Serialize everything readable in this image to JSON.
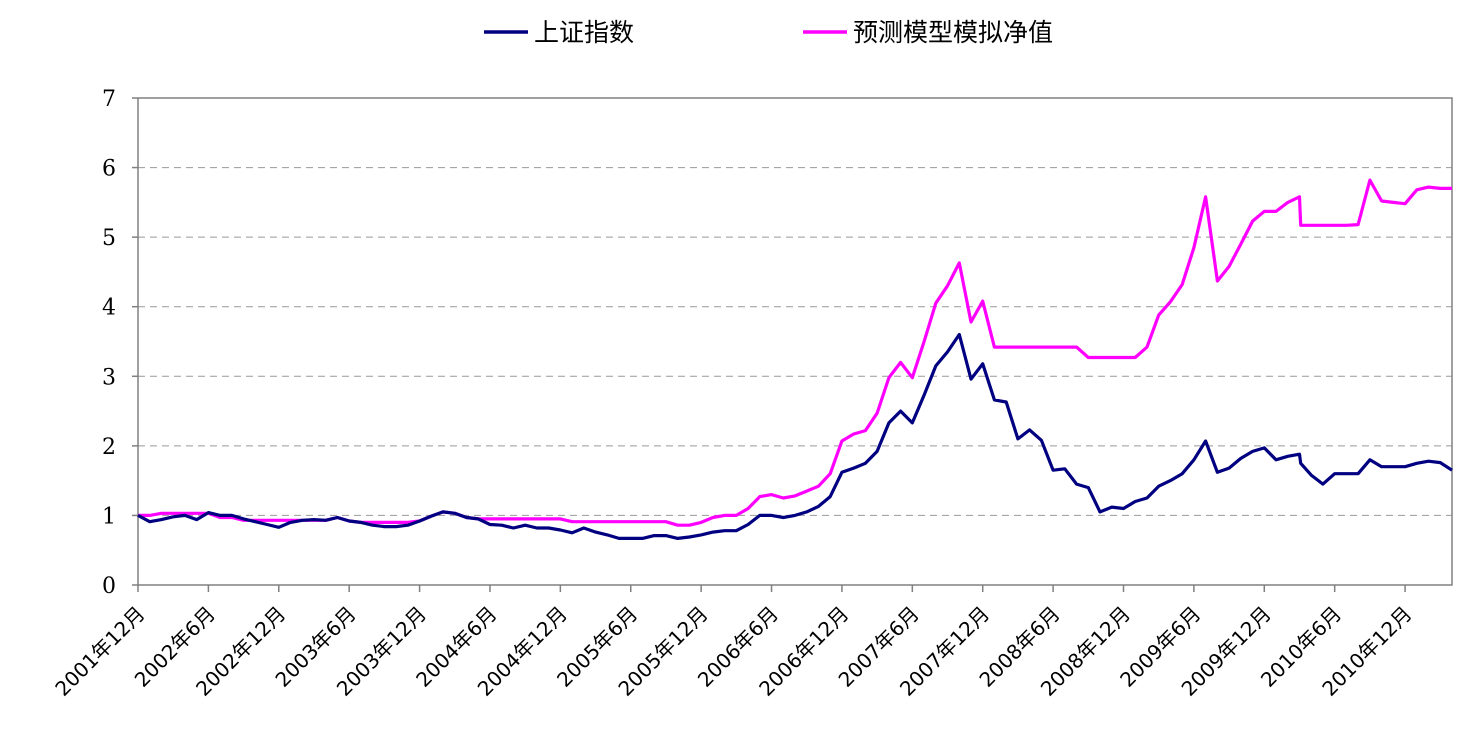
{
  "chart_data": {
    "type": "line",
    "title": "",
    "xlabel": "",
    "ylabel": "",
    "ylim": [
      0,
      7
    ],
    "yticks": [
      "0",
      "1",
      "2",
      "3",
      "4",
      "5",
      "6",
      "7"
    ],
    "grid": "horizontal dashed",
    "legend_position": "top",
    "x_tick_labels": [
      "2001年12月",
      "2002年6月",
      "2002年12月",
      "2003年6月",
      "2003年12月",
      "2004年6月",
      "2004年12月",
      "2005年6月",
      "2005年12月",
      "2006年6月",
      "2006年12月",
      "2007年6月",
      "2007年12月",
      "2008年6月",
      "2008年12月",
      "2009年6月",
      "2009年12月",
      "2010年6月",
      "2010年12月"
    ],
    "x_tick_months": [
      0,
      6,
      12,
      18,
      24,
      30,
      36,
      42,
      48,
      54,
      60,
      66,
      72,
      78,
      84,
      90,
      96,
      102,
      108
    ],
    "x_month_range": [
      0,
      112
    ],
    "series": [
      {
        "name": "上证指数",
        "color": "#000080",
        "points": [
          [
            0,
            1.0
          ],
          [
            1,
            0.91
          ],
          [
            2,
            0.94
          ],
          [
            3,
            0.98
          ],
          [
            4,
            1.0
          ],
          [
            5,
            0.94
          ],
          [
            6,
            1.04
          ],
          [
            7,
            1.0
          ],
          [
            8,
            1.0
          ],
          [
            9,
            0.95
          ],
          [
            10,
            0.91
          ],
          [
            11,
            0.87
          ],
          [
            12,
            0.83
          ],
          [
            13,
            0.9
          ],
          [
            14,
            0.93
          ],
          [
            15,
            0.94
          ],
          [
            16,
            0.93
          ],
          [
            17,
            0.97
          ],
          [
            18,
            0.92
          ],
          [
            19,
            0.9
          ],
          [
            20,
            0.86
          ],
          [
            21,
            0.84
          ],
          [
            22,
            0.84
          ],
          [
            23,
            0.86
          ],
          [
            24,
            0.92
          ],
          [
            25,
            0.99
          ],
          [
            26,
            1.05
          ],
          [
            27,
            1.03
          ],
          [
            28,
            0.97
          ],
          [
            29,
            0.95
          ],
          [
            30,
            0.87
          ],
          [
            31,
            0.86
          ],
          [
            32,
            0.82
          ],
          [
            33,
            0.86
          ],
          [
            34,
            0.82
          ],
          [
            35,
            0.82
          ],
          [
            36,
            0.79
          ],
          [
            37,
            0.75
          ],
          [
            38,
            0.82
          ],
          [
            39,
            0.76
          ],
          [
            40,
            0.72
          ],
          [
            41,
            0.67
          ],
          [
            42,
            0.67
          ],
          [
            43,
            0.67
          ],
          [
            44,
            0.71
          ],
          [
            45,
            0.71
          ],
          [
            46,
            0.67
          ],
          [
            47,
            0.69
          ],
          [
            48,
            0.72
          ],
          [
            49,
            0.76
          ],
          [
            50,
            0.78
          ],
          [
            51,
            0.78
          ],
          [
            52,
            0.87
          ],
          [
            53,
            1.0
          ],
          [
            54,
            1.0
          ],
          [
            55,
            0.97
          ],
          [
            56,
            1.0
          ],
          [
            57,
            1.05
          ],
          [
            58,
            1.13
          ],
          [
            59,
            1.27
          ],
          [
            60,
            1.62
          ],
          [
            61,
            1.68
          ],
          [
            62,
            1.75
          ],
          [
            63,
            1.92
          ],
          [
            64,
            2.33
          ],
          [
            65,
            2.5
          ],
          [
            66,
            2.33
          ],
          [
            67,
            2.73
          ],
          [
            68,
            3.15
          ],
          [
            69,
            3.35
          ],
          [
            70,
            3.6
          ],
          [
            71,
            2.96
          ],
          [
            72,
            3.18
          ],
          [
            73,
            2.66
          ],
          [
            74,
            2.63
          ],
          [
            75,
            2.1
          ],
          [
            76,
            2.23
          ],
          [
            77,
            2.08
          ],
          [
            78,
            1.65
          ],
          [
            79,
            1.67
          ],
          [
            80,
            1.45
          ],
          [
            81,
            1.4
          ],
          [
            82,
            1.05
          ],
          [
            83,
            1.12
          ],
          [
            84,
            1.1
          ],
          [
            85,
            1.2
          ],
          [
            86,
            1.25
          ],
          [
            87,
            1.42
          ],
          [
            88,
            1.5
          ],
          [
            89,
            1.6
          ],
          [
            90,
            1.8
          ],
          [
            91,
            2.07
          ],
          [
            92,
            1.62
          ],
          [
            93,
            1.68
          ],
          [
            94,
            1.82
          ],
          [
            95,
            1.92
          ],
          [
            96,
            1.97
          ],
          [
            97,
            1.8
          ],
          [
            98,
            1.85
          ],
          [
            99,
            1.88
          ],
          [
            99.1,
            1.75
          ],
          [
            100,
            1.58
          ],
          [
            101,
            1.45
          ],
          [
            102,
            1.6
          ],
          [
            103,
            1.6
          ],
          [
            104,
            1.6
          ],
          [
            105,
            1.8
          ],
          [
            106,
            1.7
          ],
          [
            107,
            1.7
          ],
          [
            108,
            1.7
          ],
          [
            109,
            1.75
          ],
          [
            110,
            1.78
          ],
          [
            111,
            1.76
          ],
          [
            112,
            1.65
          ]
        ]
      },
      {
        "name": "预测模型模拟净值",
        "color": "#ff00ff",
        "points": [
          [
            0,
            1.0
          ],
          [
            1,
            1.0
          ],
          [
            2,
            1.03
          ],
          [
            3,
            1.03
          ],
          [
            4,
            1.03
          ],
          [
            5,
            1.03
          ],
          [
            6,
            1.03
          ],
          [
            7,
            0.97
          ],
          [
            8,
            0.97
          ],
          [
            9,
            0.93
          ],
          [
            10,
            0.93
          ],
          [
            11,
            0.93
          ],
          [
            12,
            0.93
          ],
          [
            13,
            0.93
          ],
          [
            14,
            0.93
          ],
          [
            15,
            0.93
          ],
          [
            16,
            0.93
          ],
          [
            17,
            0.97
          ],
          [
            18,
            0.92
          ],
          [
            19,
            0.9
          ],
          [
            20,
            0.9
          ],
          [
            21,
            0.9
          ],
          [
            22,
            0.9
          ],
          [
            23,
            0.9
          ],
          [
            24,
            0.92
          ],
          [
            25,
            0.99
          ],
          [
            26,
            1.05
          ],
          [
            27,
            1.03
          ],
          [
            28,
            0.97
          ],
          [
            29,
            0.95
          ],
          [
            30,
            0.95
          ],
          [
            31,
            0.95
          ],
          [
            32,
            0.95
          ],
          [
            33,
            0.95
          ],
          [
            34,
            0.95
          ],
          [
            35,
            0.95
          ],
          [
            36,
            0.95
          ],
          [
            37,
            0.91
          ],
          [
            38,
            0.91
          ],
          [
            39,
            0.91
          ],
          [
            40,
            0.91
          ],
          [
            41,
            0.91
          ],
          [
            42,
            0.91
          ],
          [
            43,
            0.91
          ],
          [
            44,
            0.91
          ],
          [
            45,
            0.91
          ],
          [
            46,
            0.86
          ],
          [
            47,
            0.86
          ],
          [
            48,
            0.9
          ],
          [
            49,
            0.97
          ],
          [
            50,
            1.0
          ],
          [
            51,
            1.0
          ],
          [
            52,
            1.1
          ],
          [
            53,
            1.27
          ],
          [
            54,
            1.3
          ],
          [
            55,
            1.25
          ],
          [
            56,
            1.28
          ],
          [
            57,
            1.35
          ],
          [
            58,
            1.42
          ],
          [
            59,
            1.6
          ],
          [
            60,
            2.07
          ],
          [
            61,
            2.17
          ],
          [
            62,
            2.22
          ],
          [
            63,
            2.47
          ],
          [
            64,
            2.98
          ],
          [
            65,
            3.2
          ],
          [
            66,
            2.98
          ],
          [
            67,
            3.5
          ],
          [
            68,
            4.05
          ],
          [
            69,
            4.3
          ],
          [
            70,
            4.63
          ],
          [
            71,
            3.78
          ],
          [
            72,
            4.08
          ],
          [
            73,
            3.42
          ],
          [
            74,
            3.42
          ],
          [
            75,
            3.42
          ],
          [
            76,
            3.42
          ],
          [
            77,
            3.42
          ],
          [
            78,
            3.42
          ],
          [
            79,
            3.42
          ],
          [
            80,
            3.42
          ],
          [
            81,
            3.27
          ],
          [
            82,
            3.27
          ],
          [
            83,
            3.27
          ],
          [
            84,
            3.27
          ],
          [
            85,
            3.27
          ],
          [
            86,
            3.42
          ],
          [
            87,
            3.88
          ],
          [
            88,
            4.07
          ],
          [
            89,
            4.32
          ],
          [
            90,
            4.85
          ],
          [
            91,
            5.58
          ],
          [
            92,
            4.37
          ],
          [
            93,
            4.58
          ],
          [
            94,
            4.9
          ],
          [
            95,
            5.23
          ],
          [
            96,
            5.37
          ],
          [
            97,
            5.37
          ],
          [
            98,
            5.5
          ],
          [
            99,
            5.58
          ],
          [
            99.1,
            5.17
          ],
          [
            100,
            5.17
          ],
          [
            101,
            5.17
          ],
          [
            102,
            5.17
          ],
          [
            103,
            5.17
          ],
          [
            104,
            5.18
          ],
          [
            105,
            5.82
          ],
          [
            106,
            5.52
          ],
          [
            107,
            5.5
          ],
          [
            108,
            5.48
          ],
          [
            109,
            5.68
          ],
          [
            110,
            5.72
          ],
          [
            111,
            5.7
          ],
          [
            112,
            5.7
          ]
        ]
      }
    ]
  }
}
